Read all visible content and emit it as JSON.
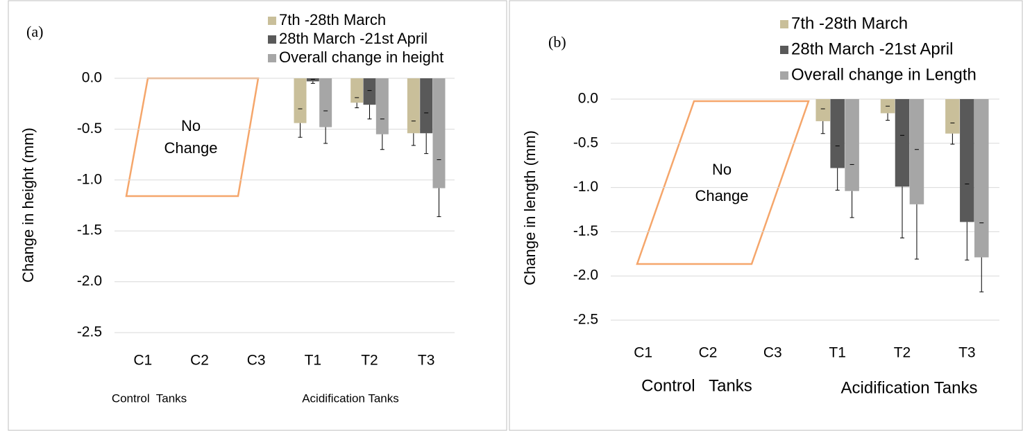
{
  "chart_data": [
    {
      "type": "bar",
      "panel_label": "(a)",
      "y_label": "Change in height (mm)",
      "categories": [
        "C1",
        "C2",
        "C3",
        "T1",
        "T2",
        "T3"
      ],
      "group_labels": [
        "Control  Tanks",
        "Acidification Tanks"
      ],
      "annotation": [
        "No",
        "Change"
      ],
      "series": [
        {
          "name": "7th -28th March",
          "color": "#c9bf9a",
          "values": [
            null,
            null,
            null,
            -0.44,
            -0.24,
            -0.54
          ],
          "errors": [
            null,
            null,
            null,
            0.14,
            0.05,
            0.12
          ]
        },
        {
          "name": "28th March -21st April",
          "color": "#595959",
          "values": [
            null,
            null,
            null,
            -0.03,
            -0.26,
            -0.54
          ],
          "errors": [
            null,
            null,
            null,
            0.02,
            0.14,
            0.2
          ]
        },
        {
          "name": "Overall change in height",
          "color": "#a6a6a6",
          "values": [
            null,
            null,
            null,
            -0.48,
            -0.55,
            -1.08
          ],
          "errors": [
            null,
            null,
            null,
            0.16,
            0.15,
            0.28
          ]
        }
      ],
      "ylim": [
        -2.5,
        0
      ],
      "yticks": [
        {
          "value": 0,
          "label": "0.0"
        },
        -0.5,
        {
          "value": -1,
          "label": "-1.0"
        },
        -1.5,
        {
          "value": -2,
          "label": "-2.0"
        },
        -2.5
      ],
      "grid": true
    },
    {
      "type": "bar",
      "panel_label": "(b)",
      "y_label": "Change in  length (mm)",
      "categories": [
        "C1",
        "C2",
        "C3",
        "T1",
        "T2",
        "T3"
      ],
      "group_labels": [
        "Control   Tanks",
        "Acidification Tanks"
      ],
      "annotation": [
        "No",
        "Change"
      ],
      "series": [
        {
          "name": "7th -28th March",
          "color": "#c9bf9a",
          "values": [
            null,
            null,
            null,
            -0.25,
            -0.16,
            -0.39
          ],
          "errors": [
            null,
            null,
            null,
            0.14,
            0.08,
            0.12
          ]
        },
        {
          "name": "28th March -21st April",
          "color": "#595959",
          "values": [
            null,
            null,
            null,
            -0.78,
            -0.99,
            -1.39
          ],
          "errors": [
            null,
            null,
            null,
            0.25,
            0.58,
            0.43
          ]
        },
        {
          "name": "Overall change in Length",
          "color": "#a6a6a6",
          "values": [
            null,
            null,
            null,
            -1.04,
            -1.19,
            -1.79
          ],
          "errors": [
            null,
            null,
            null,
            0.3,
            0.62,
            0.39
          ]
        }
      ],
      "ylim": [
        -2.5,
        0
      ],
      "yticks": [
        {
          "value": 0,
          "label": "0.0"
        },
        -0.5,
        {
          "value": -1,
          "label": "-1.0"
        },
        -1.5,
        {
          "value": -2,
          "label": "-2.0"
        },
        -2.5
      ],
      "grid": true
    }
  ]
}
